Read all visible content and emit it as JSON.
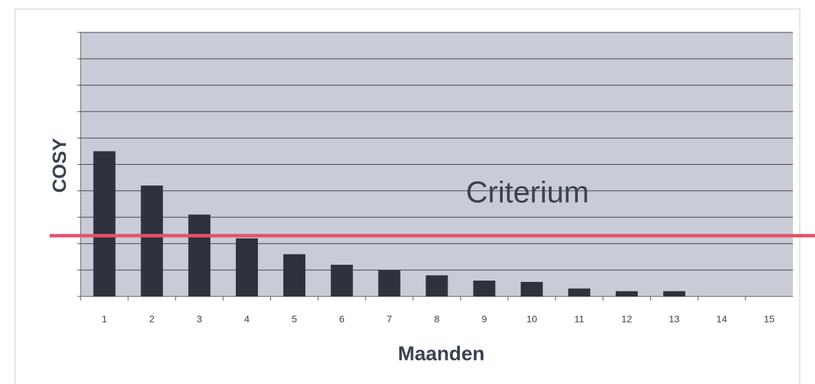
{
  "chart_data": {
    "type": "bar",
    "x_label": "Maanden",
    "y_label": "COSY",
    "categories": [
      "1",
      "2",
      "3",
      "4",
      "5",
      "6",
      "7",
      "8",
      "9",
      "10",
      "11",
      "12",
      "13",
      "14",
      "15"
    ],
    "values": [
      5.5,
      4.2,
      3.1,
      2.2,
      1.6,
      1.2,
      1.0,
      0.8,
      0.6,
      0.55,
      0.3,
      0.2,
      0.2,
      0,
      0
    ],
    "color": "#2e323c",
    "ylim": [
      0,
      10
    ],
    "yticks": [
      0,
      1,
      2,
      3,
      4,
      5,
      6,
      7,
      8,
      9,
      10
    ],
    "grid": true,
    "threshold": {
      "label": "Criterium",
      "value": 2.3,
      "color": "#e8506a"
    }
  }
}
